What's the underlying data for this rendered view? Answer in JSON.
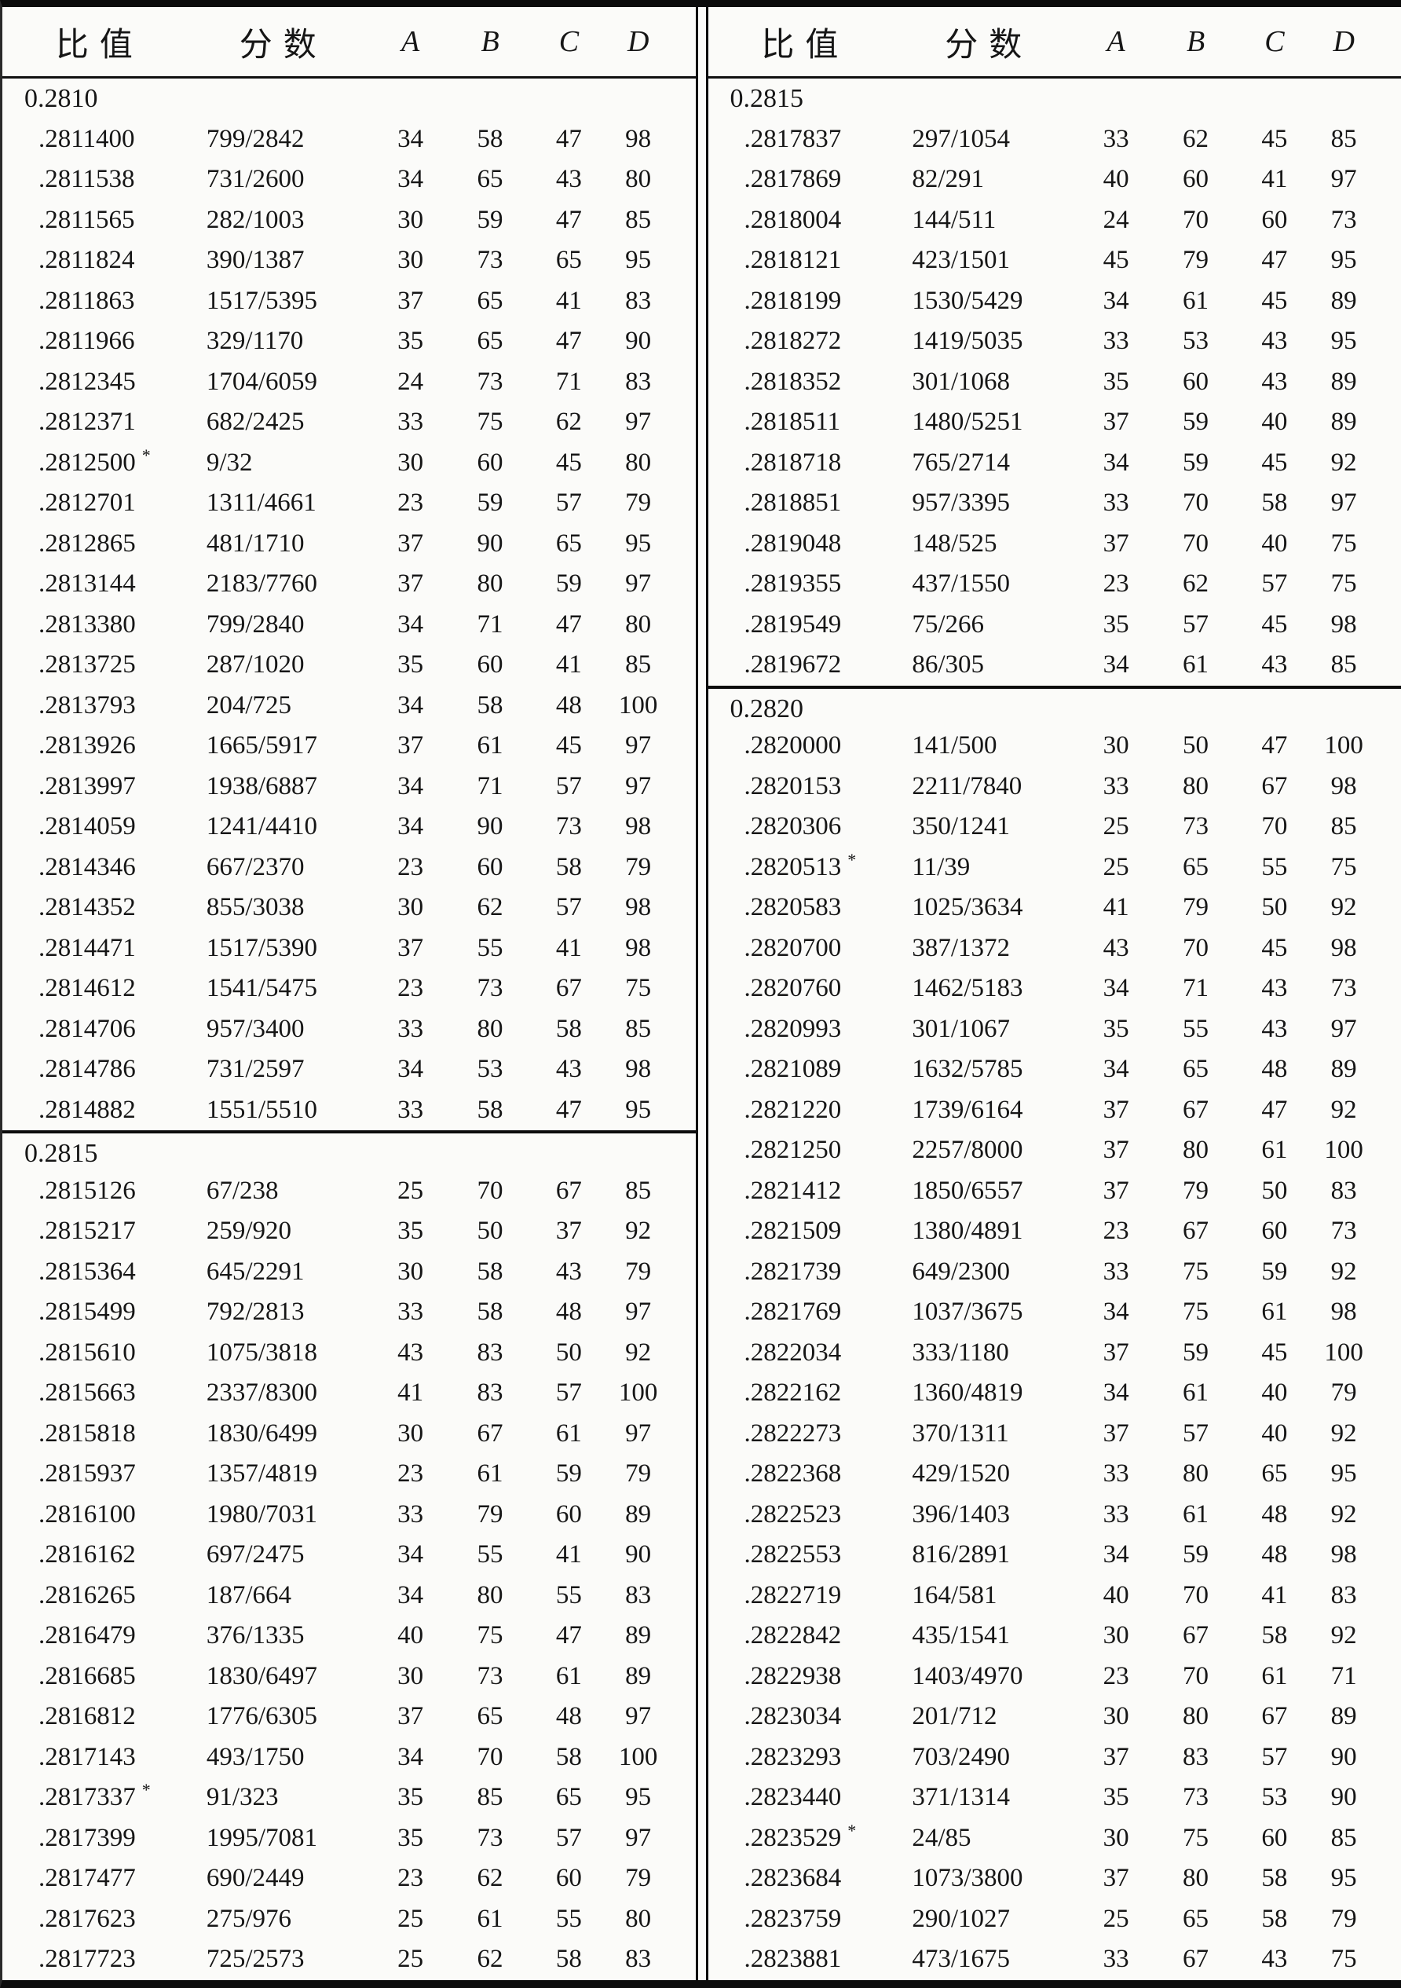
{
  "table": {
    "columns": [
      "比值",
      "分数",
      "A",
      "B",
      "C",
      "D"
    ],
    "star_symbol": "*",
    "panels": [
      {
        "side": "left",
        "sections": [
          {
            "label": "0.2810",
            "rows": [
              [
                ".2811400",
                "799/2842",
                "34",
                "58",
                "47",
                "98"
              ],
              [
                ".2811538",
                "731/2600",
                "34",
                "65",
                "43",
                "80"
              ],
              [
                ".2811565",
                "282/1003",
                "30",
                "59",
                "47",
                "85"
              ],
              [
                ".2811824",
                "390/1387",
                "30",
                "73",
                "65",
                "95"
              ],
              [
                ".2811863",
                "1517/5395",
                "37",
                "65",
                "41",
                "83"
              ],
              [
                ".2811966",
                "329/1170",
                "35",
                "65",
                "47",
                "90"
              ],
              [
                ".2812345",
                "1704/6059",
                "24",
                "73",
                "71",
                "83"
              ],
              [
                ".2812371",
                "682/2425",
                "33",
                "75",
                "62",
                "97"
              ],
              [
                ".2812500",
                "9/32",
                "30",
                "60",
                "45",
                "80",
                "*"
              ],
              [
                ".2812701",
                "1311/4661",
                "23",
                "59",
                "57",
                "79"
              ],
              [
                ".2812865",
                "481/1710",
                "37",
                "90",
                "65",
                "95"
              ],
              [
                ".2813144",
                "2183/7760",
                "37",
                "80",
                "59",
                "97"
              ],
              [
                ".2813380",
                "799/2840",
                "34",
                "71",
                "47",
                "80"
              ],
              [
                ".2813725",
                "287/1020",
                "35",
                "60",
                "41",
                "85"
              ],
              [
                ".2813793",
                "204/725",
                "34",
                "58",
                "48",
                "100"
              ],
              [
                ".2813926",
                "1665/5917",
                "37",
                "61",
                "45",
                "97"
              ],
              [
                ".2813997",
                "1938/6887",
                "34",
                "71",
                "57",
                "97"
              ],
              [
                ".2814059",
                "1241/4410",
                "34",
                "90",
                "73",
                "98"
              ],
              [
                ".2814346",
                "667/2370",
                "23",
                "60",
                "58",
                "79"
              ],
              [
                ".2814352",
                "855/3038",
                "30",
                "62",
                "57",
                "98"
              ],
              [
                ".2814471",
                "1517/5390",
                "37",
                "55",
                "41",
                "98"
              ],
              [
                ".2814612",
                "1541/5475",
                "23",
                "73",
                "67",
                "75"
              ],
              [
                ".2814706",
                "957/3400",
                "33",
                "80",
                "58",
                "85"
              ],
              [
                ".2814786",
                "731/2597",
                "34",
                "53",
                "43",
                "98"
              ],
              [
                ".2814882",
                "1551/5510",
                "33",
                "58",
                "47",
                "95"
              ]
            ]
          },
          {
            "label": "0.2815",
            "rows": [
              [
                ".2815126",
                "67/238",
                "25",
                "70",
                "67",
                "85"
              ],
              [
                ".2815217",
                "259/920",
                "35",
                "50",
                "37",
                "92"
              ],
              [
                ".2815364",
                "645/2291",
                "30",
                "58",
                "43",
                "79"
              ],
              [
                ".2815499",
                "792/2813",
                "33",
                "58",
                "48",
                "97"
              ],
              [
                ".2815610",
                "1075/3818",
                "43",
                "83",
                "50",
                "92"
              ],
              [
                ".2815663",
                "2337/8300",
                "41",
                "83",
                "57",
                "100"
              ],
              [
                ".2815818",
                "1830/6499",
                "30",
                "67",
                "61",
                "97"
              ],
              [
                ".2815937",
                "1357/4819",
                "23",
                "61",
                "59",
                "79"
              ],
              [
                ".2816100",
                "1980/7031",
                "33",
                "79",
                "60",
                "89"
              ],
              [
                ".2816162",
                "697/2475",
                "34",
                "55",
                "41",
                "90"
              ],
              [
                ".2816265",
                "187/664",
                "34",
                "80",
                "55",
                "83"
              ],
              [
                ".2816479",
                "376/1335",
                "40",
                "75",
                "47",
                "89"
              ],
              [
                ".2816685",
                "1830/6497",
                "30",
                "73",
                "61",
                "89"
              ],
              [
                ".2816812",
                "1776/6305",
                "37",
                "65",
                "48",
                "97"
              ],
              [
                ".2817143",
                "493/1750",
                "34",
                "70",
                "58",
                "100"
              ],
              [
                ".2817337",
                "91/323",
                "35",
                "85",
                "65",
                "95",
                "*"
              ],
              [
                ".2817399",
                "1995/7081",
                "35",
                "73",
                "57",
                "97"
              ],
              [
                ".2817477",
                "690/2449",
                "23",
                "62",
                "60",
                "79"
              ],
              [
                ".2817623",
                "275/976",
                "25",
                "61",
                "55",
                "80"
              ],
              [
                ".2817723",
                "725/2573",
                "25",
                "62",
                "58",
                "83"
              ]
            ]
          }
        ]
      },
      {
        "side": "right",
        "sections": [
          {
            "label": "0.2815",
            "rows": [
              [
                ".2817837",
                "297/1054",
                "33",
                "62",
                "45",
                "85"
              ],
              [
                ".2817869",
                "82/291",
                "40",
                "60",
                "41",
                "97"
              ],
              [
                ".2818004",
                "144/511",
                "24",
                "70",
                "60",
                "73"
              ],
              [
                ".2818121",
                "423/1501",
                "45",
                "79",
                "47",
                "95"
              ],
              [
                ".2818199",
                "1530/5429",
                "34",
                "61",
                "45",
                "89"
              ],
              [
                ".2818272",
                "1419/5035",
                "33",
                "53",
                "43",
                "95"
              ],
              [
                ".2818352",
                "301/1068",
                "35",
                "60",
                "43",
                "89"
              ],
              [
                ".2818511",
                "1480/5251",
                "37",
                "59",
                "40",
                "89"
              ],
              [
                ".2818718",
                "765/2714",
                "34",
                "59",
                "45",
                "92"
              ],
              [
                ".2818851",
                "957/3395",
                "33",
                "70",
                "58",
                "97"
              ],
              [
                ".2819048",
                "148/525",
                "37",
                "70",
                "40",
                "75"
              ],
              [
                ".2819355",
                "437/1550",
                "23",
                "62",
                "57",
                "75"
              ],
              [
                ".2819549",
                "75/266",
                "35",
                "57",
                "45",
                "98"
              ],
              [
                ".2819672",
                "86/305",
                "34",
                "61",
                "43",
                "85"
              ]
            ]
          },
          {
            "label": "0.2820",
            "rows": [
              [
                ".2820000",
                "141/500",
                "30",
                "50",
                "47",
                "100"
              ],
              [
                ".2820153",
                "2211/7840",
                "33",
                "80",
                "67",
                "98"
              ],
              [
                ".2820306",
                "350/1241",
                "25",
                "73",
                "70",
                "85"
              ],
              [
                ".2820513",
                "11/39",
                "25",
                "65",
                "55",
                "75",
                "*"
              ],
              [
                ".2820583",
                "1025/3634",
                "41",
                "79",
                "50",
                "92"
              ],
              [
                ".2820700",
                "387/1372",
                "43",
                "70",
                "45",
                "98"
              ],
              [
                ".2820760",
                "1462/5183",
                "34",
                "71",
                "43",
                "73"
              ],
              [
                ".2820993",
                "301/1067",
                "35",
                "55",
                "43",
                "97"
              ],
              [
                ".2821089",
                "1632/5785",
                "34",
                "65",
                "48",
                "89"
              ],
              [
                ".2821220",
                "1739/6164",
                "37",
                "67",
                "47",
                "92"
              ],
              [
                ".2821250",
                "2257/8000",
                "37",
                "80",
                "61",
                "100"
              ],
              [
                ".2821412",
                "1850/6557",
                "37",
                "79",
                "50",
                "83"
              ],
              [
                ".2821509",
                "1380/4891",
                "23",
                "67",
                "60",
                "73"
              ],
              [
                ".2821739",
                "649/2300",
                "33",
                "75",
                "59",
                "92"
              ],
              [
                ".2821769",
                "1037/3675",
                "34",
                "75",
                "61",
                "98"
              ],
              [
                ".2822034",
                "333/1180",
                "37",
                "59",
                "45",
                "100"
              ],
              [
                ".2822162",
                "1360/4819",
                "34",
                "61",
                "40",
                "79"
              ],
              [
                ".2822273",
                "370/1311",
                "37",
                "57",
                "40",
                "92"
              ],
              [
                ".2822368",
                "429/1520",
                "33",
                "80",
                "65",
                "95"
              ],
              [
                ".2822523",
                "396/1403",
                "33",
                "61",
                "48",
                "92"
              ],
              [
                ".2822553",
                "816/2891",
                "34",
                "59",
                "48",
                "98"
              ],
              [
                ".2822719",
                "164/581",
                "40",
                "70",
                "41",
                "83"
              ],
              [
                ".2822842",
                "435/1541",
                "30",
                "67",
                "58",
                "92"
              ],
              [
                ".2822938",
                "1403/4970",
                "23",
                "70",
                "61",
                "71"
              ],
              [
                ".2823034",
                "201/712",
                "30",
                "80",
                "67",
                "89"
              ],
              [
                ".2823293",
                "703/2490",
                "37",
                "83",
                "57",
                "90"
              ],
              [
                ".2823440",
                "371/1314",
                "35",
                "73",
                "53",
                "90"
              ],
              [
                ".2823529",
                "24/85",
                "30",
                "75",
                "60",
                "85",
                "*"
              ],
              [
                ".2823684",
                "1073/3800",
                "37",
                "80",
                "58",
                "95"
              ],
              [
                ".2823759",
                "290/1027",
                "25",
                "65",
                "58",
                "79"
              ],
              [
                ".2823881",
                "473/1675",
                "33",
                "67",
                "43",
                "75"
              ]
            ]
          }
        ]
      }
    ]
  }
}
